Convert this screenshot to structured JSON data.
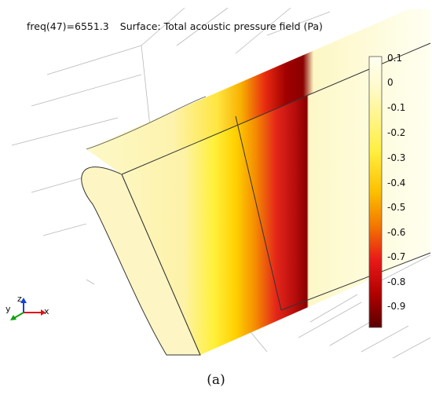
{
  "plot": {
    "parameter_label": "freq(47)=6551.3",
    "surface_label": "Surface: Total acoustic pressure field (Pa)"
  },
  "colorbar": {
    "ticks": [
      "0.1",
      "0",
      "-0.1",
      "-0.2",
      "-0.3",
      "-0.4",
      "-0.5",
      "-0.6",
      "-0.7",
      "-0.8",
      "-0.9"
    ],
    "colors": {
      "top": "#fffff0",
      "pale": "#fdf6b8",
      "yellow": "#fff200",
      "orange": "#f5a300",
      "red": "#e8101a",
      "darkred": "#6b0000"
    }
  },
  "axes_triad": {
    "x": "x",
    "y": "y",
    "z": "z",
    "colors": {
      "x": "#e01010",
      "y": "#10a010",
      "z": "#1040e0"
    }
  },
  "caption": "(a)"
}
